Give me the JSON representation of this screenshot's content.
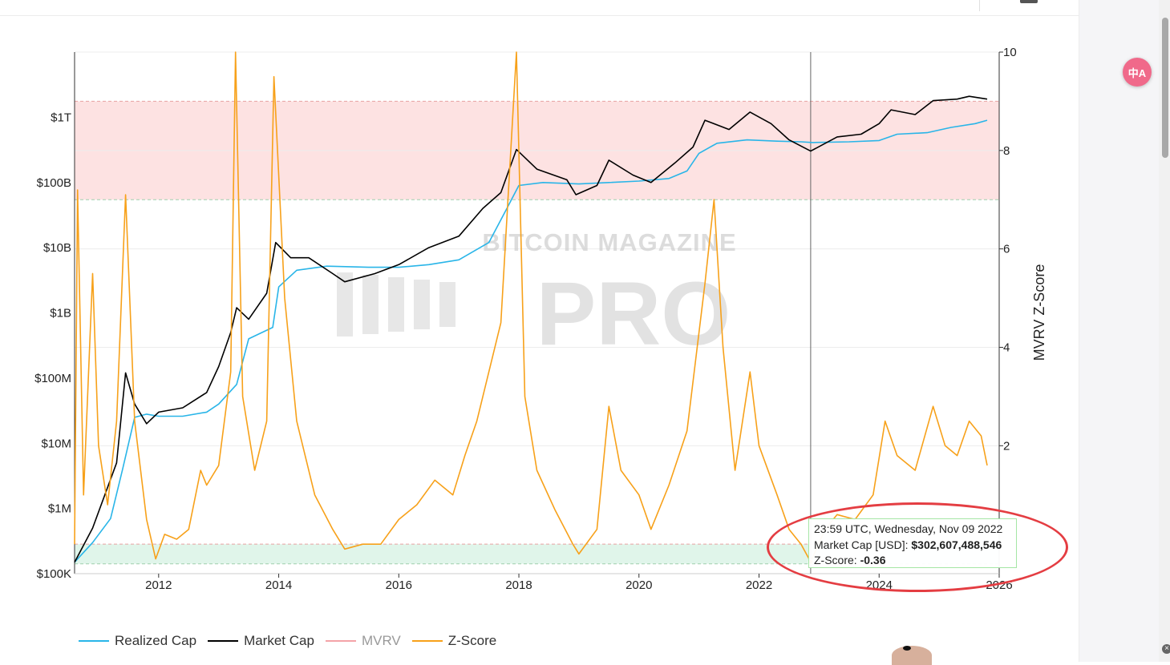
{
  "chart_data": {
    "type": "line",
    "watermark": "BITCOIN MAGAZINE PRO",
    "x_axis": {
      "ticks": [
        "2012",
        "2014",
        "2016",
        "2018",
        "2020",
        "2022",
        "2024",
        "2026"
      ],
      "range": [
        2010.6,
        2026.0
      ]
    },
    "y_left": {
      "scale": "log",
      "ticks": [
        "$100K",
        "$1M",
        "$10M",
        "$100M",
        "$1B",
        "$10B",
        "$100B",
        "$1T"
      ],
      "range": [
        100000,
        10000000000000
      ]
    },
    "y_right": {
      "label": "MVRV Z-Score",
      "ticks": [
        "2",
        "4",
        "6",
        "8",
        "10"
      ],
      "range": [
        -0.6,
        10
      ]
    },
    "bands": [
      {
        "name": "overvalued",
        "color": "#fde2e2",
        "from_z": 7.0,
        "to_z": 9.0
      },
      {
        "name": "undervalued",
        "color": "#e0f5ea",
        "from_z": -0.4,
        "to_z": 0.0
      }
    ],
    "crosshair_x": 2022.86,
    "series": [
      {
        "name": "Realized Cap",
        "axis": "left",
        "color": "#29b5e8",
        "points": [
          [
            2010.6,
            150000
          ],
          [
            2010.9,
            300000
          ],
          [
            2011.2,
            700000
          ],
          [
            2011.4,
            4000000
          ],
          [
            2011.6,
            25000000
          ],
          [
            2011.8,
            28000000
          ],
          [
            2012.0,
            26000000
          ],
          [
            2012.4,
            26000000
          ],
          [
            2012.8,
            30000000
          ],
          [
            2013.0,
            40000000
          ],
          [
            2013.3,
            80000000
          ],
          [
            2013.5,
            400000000
          ],
          [
            2013.9,
            600000000
          ],
          [
            2014.0,
            2500000000
          ],
          [
            2014.3,
            4500000000
          ],
          [
            2014.8,
            5200000000
          ],
          [
            2015.5,
            5000000000
          ],
          [
            2016.0,
            5000000000
          ],
          [
            2016.5,
            5500000000
          ],
          [
            2017.0,
            6500000000
          ],
          [
            2017.5,
            12000000000
          ],
          [
            2017.8,
            40000000000
          ],
          [
            2018.0,
            90000000000
          ],
          [
            2018.4,
            100000000000
          ],
          [
            2019.0,
            95000000000
          ],
          [
            2019.5,
            100000000000
          ],
          [
            2020.0,
            105000000000
          ],
          [
            2020.5,
            115000000000
          ],
          [
            2020.8,
            150000000000
          ],
          [
            2021.0,
            280000000000
          ],
          [
            2021.3,
            400000000000
          ],
          [
            2021.8,
            450000000000
          ],
          [
            2022.3,
            430000000000
          ],
          [
            2022.7,
            420000000000
          ],
          [
            2022.9,
            410000000000
          ],
          [
            2023.5,
            420000000000
          ],
          [
            2024.0,
            440000000000
          ],
          [
            2024.3,
            550000000000
          ],
          [
            2024.8,
            580000000000
          ],
          [
            2025.2,
            700000000000
          ],
          [
            2025.6,
            800000000000
          ],
          [
            2025.8,
            900000000000
          ]
        ]
      },
      {
        "name": "Market Cap",
        "axis": "left",
        "color": "#000000",
        "points": [
          [
            2010.6,
            150000
          ],
          [
            2010.9,
            500000
          ],
          [
            2011.3,
            5000000
          ],
          [
            2011.45,
            120000000
          ],
          [
            2011.6,
            40000000
          ],
          [
            2011.8,
            20000000
          ],
          [
            2012.0,
            30000000
          ],
          [
            2012.4,
            35000000
          ],
          [
            2012.8,
            60000000
          ],
          [
            2013.0,
            150000000
          ],
          [
            2013.2,
            500000000
          ],
          [
            2013.3,
            1200000000
          ],
          [
            2013.5,
            800000000
          ],
          [
            2013.8,
            2000000000
          ],
          [
            2013.95,
            12000000000
          ],
          [
            2014.2,
            7000000000
          ],
          [
            2014.5,
            7000000000
          ],
          [
            2014.9,
            4000000000
          ],
          [
            2015.1,
            3000000000
          ],
          [
            2015.6,
            4000000000
          ],
          [
            2016.0,
            5500000000
          ],
          [
            2016.5,
            10000000000
          ],
          [
            2017.0,
            15000000000
          ],
          [
            2017.4,
            40000000000
          ],
          [
            2017.7,
            70000000000
          ],
          [
            2017.96,
            320000000000
          ],
          [
            2018.3,
            160000000000
          ],
          [
            2018.8,
            110000000000
          ],
          [
            2018.95,
            65000000000
          ],
          [
            2019.3,
            90000000000
          ],
          [
            2019.5,
            220000000000
          ],
          [
            2019.9,
            130000000000
          ],
          [
            2020.2,
            100000000000
          ],
          [
            2020.6,
            200000000000
          ],
          [
            2020.9,
            350000000000
          ],
          [
            2021.1,
            900000000000
          ],
          [
            2021.5,
            650000000000
          ],
          [
            2021.85,
            1200000000000
          ],
          [
            2022.2,
            800000000000
          ],
          [
            2022.5,
            450000000000
          ],
          [
            2022.86,
            302607488546
          ],
          [
            2023.3,
            500000000000
          ],
          [
            2023.7,
            550000000000
          ],
          [
            2024.0,
            800000000000
          ],
          [
            2024.2,
            1300000000000
          ],
          [
            2024.6,
            1100000000000
          ],
          [
            2024.9,
            1800000000000
          ],
          [
            2025.3,
            1900000000000
          ],
          [
            2025.5,
            2100000000000
          ],
          [
            2025.8,
            1900000000000
          ]
        ]
      },
      {
        "name": "MVRV",
        "axis": "left",
        "color": "#f4a3a8",
        "visible": false
      },
      {
        "name": "Z-Score",
        "axis": "right",
        "color": "#f7a11a",
        "points": [
          [
            2010.6,
            0.0
          ],
          [
            2010.65,
            7.2
          ],
          [
            2010.75,
            1.0
          ],
          [
            2010.9,
            5.5
          ],
          [
            2011.0,
            2.0
          ],
          [
            2011.15,
            0.8
          ],
          [
            2011.3,
            2.5
          ],
          [
            2011.45,
            7.1
          ],
          [
            2011.6,
            2.5
          ],
          [
            2011.8,
            0.5
          ],
          [
            2011.95,
            -0.3
          ],
          [
            2012.1,
            0.2
          ],
          [
            2012.3,
            0.1
          ],
          [
            2012.5,
            0.3
          ],
          [
            2012.7,
            1.5
          ],
          [
            2012.8,
            1.2
          ],
          [
            2013.0,
            1.6
          ],
          [
            2013.2,
            3.5
          ],
          [
            2013.28,
            10.0
          ],
          [
            2013.4,
            3.0
          ],
          [
            2013.6,
            1.5
          ],
          [
            2013.8,
            2.5
          ],
          [
            2013.92,
            9.5
          ],
          [
            2014.1,
            5.0
          ],
          [
            2014.3,
            2.5
          ],
          [
            2014.6,
            1.0
          ],
          [
            2014.9,
            0.3
          ],
          [
            2015.1,
            -0.1
          ],
          [
            2015.4,
            0.0
          ],
          [
            2015.7,
            0.0
          ],
          [
            2016.0,
            0.5
          ],
          [
            2016.3,
            0.8
          ],
          [
            2016.6,
            1.3
          ],
          [
            2016.9,
            1.0
          ],
          [
            2017.1,
            1.8
          ],
          [
            2017.3,
            2.5
          ],
          [
            2017.5,
            3.5
          ],
          [
            2017.7,
            4.5
          ],
          [
            2017.96,
            10.0
          ],
          [
            2018.1,
            3.0
          ],
          [
            2018.3,
            1.5
          ],
          [
            2018.6,
            0.7
          ],
          [
            2018.9,
            0.0
          ],
          [
            2019.0,
            -0.2
          ],
          [
            2019.3,
            0.3
          ],
          [
            2019.5,
            2.8
          ],
          [
            2019.7,
            1.5
          ],
          [
            2020.0,
            1.0
          ],
          [
            2020.2,
            0.3
          ],
          [
            2020.5,
            1.2
          ],
          [
            2020.8,
            2.3
          ],
          [
            2020.95,
            3.8
          ],
          [
            2021.1,
            5.3
          ],
          [
            2021.25,
            7.0
          ],
          [
            2021.4,
            4.0
          ],
          [
            2021.6,
            1.5
          ],
          [
            2021.85,
            3.5
          ],
          [
            2022.0,
            2.0
          ],
          [
            2022.3,
            1.0
          ],
          [
            2022.5,
            0.3
          ],
          [
            2022.7,
            0.0
          ],
          [
            2022.86,
            -0.36
          ],
          [
            2023.1,
            0.3
          ],
          [
            2023.3,
            0.6
          ],
          [
            2023.6,
            0.5
          ],
          [
            2023.9,
            1.0
          ],
          [
            2024.1,
            2.5
          ],
          [
            2024.3,
            1.8
          ],
          [
            2024.6,
            1.5
          ],
          [
            2024.9,
            2.8
          ],
          [
            2025.1,
            2.0
          ],
          [
            2025.3,
            1.8
          ],
          [
            2025.5,
            2.5
          ],
          [
            2025.7,
            2.2
          ],
          [
            2025.8,
            1.6
          ]
        ]
      }
    ]
  },
  "legend": [
    {
      "label": "Realized Cap",
      "color": "#29b5e8",
      "muted": false
    },
    {
      "label": "Market Cap",
      "color": "#000000",
      "muted": false
    },
    {
      "label": "MVRV",
      "color": "#f4a3a8",
      "muted": true
    },
    {
      "label": "Z-Score",
      "color": "#f7a11a",
      "muted": false
    }
  ],
  "tooltip": {
    "time": "23:59 UTC, Wednesday, Nov 09 2022",
    "mcap_label": "Market Cap [USD]:",
    "mcap_value": "$302,607,488,546",
    "z_label": "Z-Score:",
    "z_value": "-0.36"
  },
  "ui": {
    "translate_icon": "translate-icon",
    "translate_text": "中A",
    "close_text": "×"
  }
}
